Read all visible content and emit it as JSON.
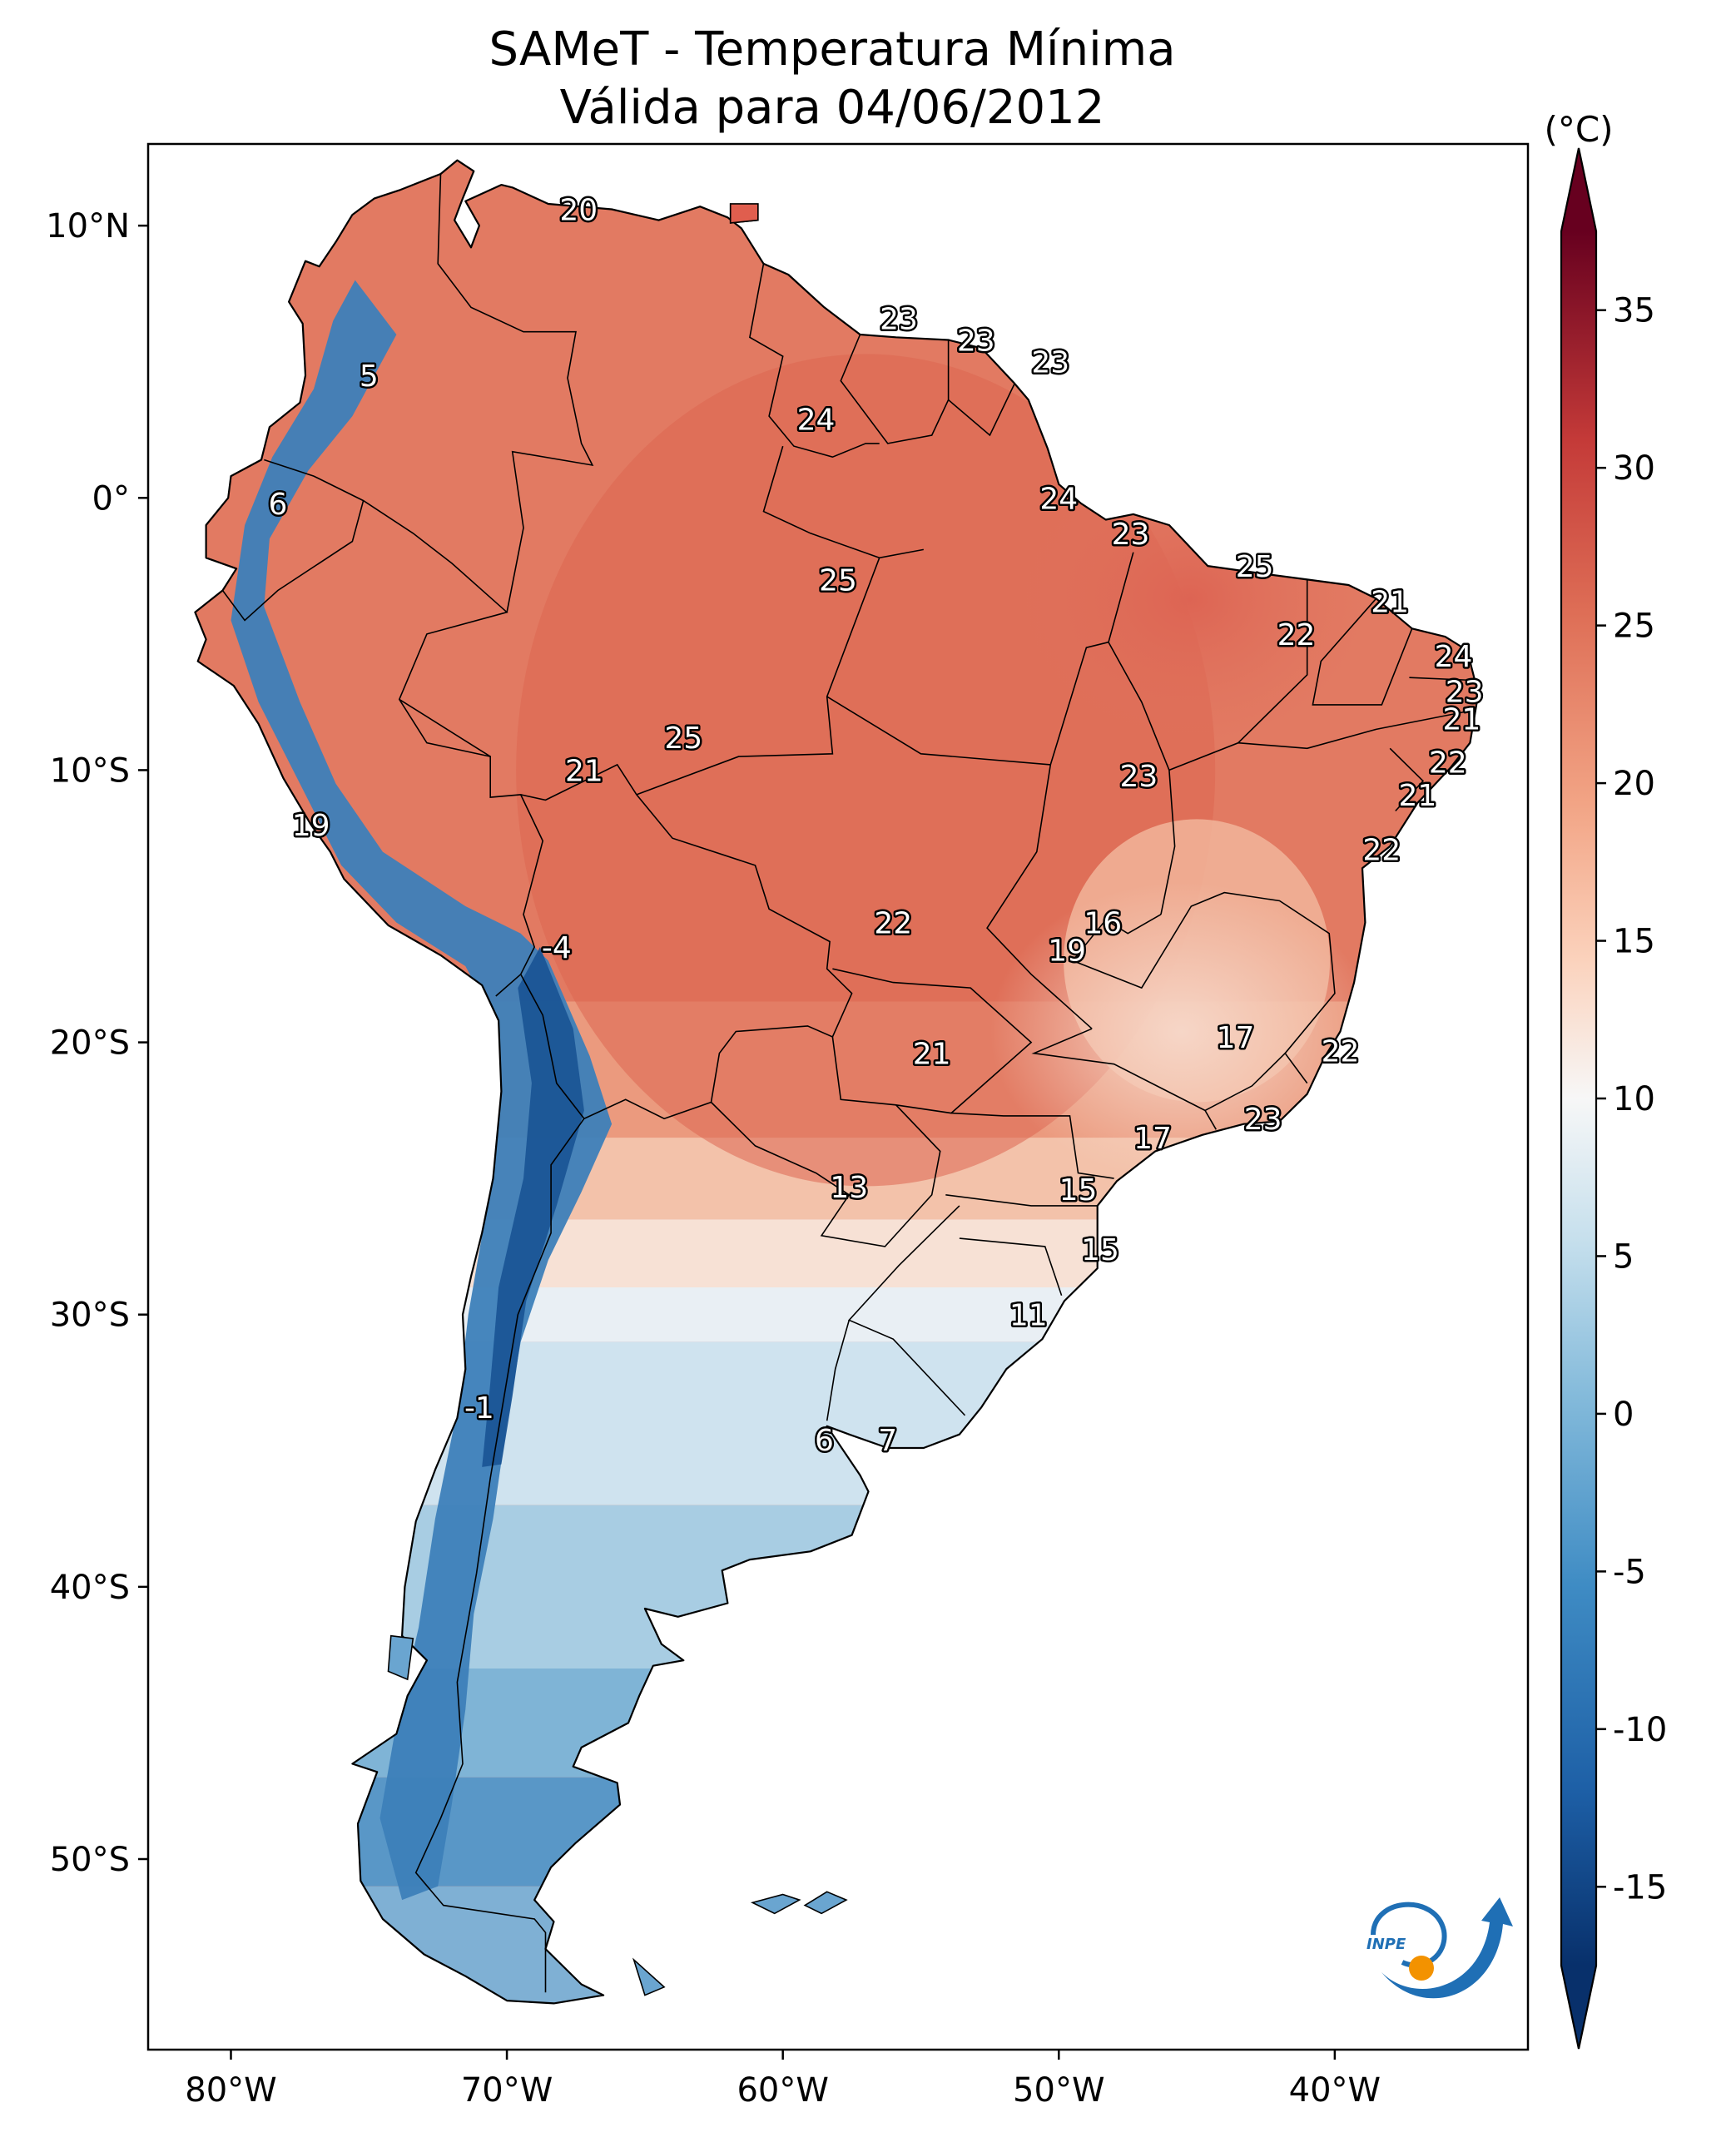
{
  "title_line1": "SAMeT - Temperatura Mínima",
  "title_line2": "Válida para 04/06/2012",
  "map": {
    "lon_range": [
      -83,
      -33
    ],
    "lat_range": [
      -57,
      13
    ],
    "lon_ticks": [
      {
        "value": -80,
        "label": "80°W"
      },
      {
        "value": -70,
        "label": "70°W"
      },
      {
        "value": -60,
        "label": "60°W"
      },
      {
        "value": -50,
        "label": "50°W"
      },
      {
        "value": -40,
        "label": "40°W"
      }
    ],
    "lat_ticks": [
      {
        "value": 10,
        "label": "10°N"
      },
      {
        "value": 0,
        "label": "0°"
      },
      {
        "value": -10,
        "label": "10°S"
      },
      {
        "value": -20,
        "label": "20°S"
      },
      {
        "value": -30,
        "label": "30°S"
      },
      {
        "value": -40,
        "label": "40°S"
      },
      {
        "value": -50,
        "label": "50°S"
      }
    ],
    "station_values": [
      {
        "lon": -67.4,
        "lat": 10.6,
        "label": "20"
      },
      {
        "lon": -55.8,
        "lat": 6.6,
        "label": "23"
      },
      {
        "lon": -53.0,
        "lat": 5.8,
        "label": "23"
      },
      {
        "lon": -50.3,
        "lat": 5.0,
        "label": "23"
      },
      {
        "lon": -58.8,
        "lat": 2.9,
        "label": "24"
      },
      {
        "lon": -75.0,
        "lat": 4.5,
        "label": "5"
      },
      {
        "lon": -50.0,
        "lat": 0.0,
        "label": "24"
      },
      {
        "lon": -47.4,
        "lat": -1.3,
        "label": "23"
      },
      {
        "lon": -78.3,
        "lat": -0.2,
        "label": "6"
      },
      {
        "lon": -42.9,
        "lat": -2.5,
        "label": "25"
      },
      {
        "lon": -58.0,
        "lat": -3.0,
        "label": "25"
      },
      {
        "lon": -38.0,
        "lat": -3.8,
        "label": "21"
      },
      {
        "lon": -41.4,
        "lat": -5.0,
        "label": "22"
      },
      {
        "lon": -35.7,
        "lat": -5.8,
        "label": "24"
      },
      {
        "lon": -35.3,
        "lat": -7.1,
        "label": "23"
      },
      {
        "lon": -35.4,
        "lat": -8.1,
        "label": "21"
      },
      {
        "lon": -63.6,
        "lat": -8.8,
        "label": "25"
      },
      {
        "lon": -35.9,
        "lat": -9.7,
        "label": "22"
      },
      {
        "lon": -67.2,
        "lat": -10.0,
        "label": "21"
      },
      {
        "lon": -47.1,
        "lat": -10.2,
        "label": "23"
      },
      {
        "lon": -37.0,
        "lat": -10.9,
        "label": "21"
      },
      {
        "lon": -77.1,
        "lat": -12.0,
        "label": "19"
      },
      {
        "lon": -38.3,
        "lat": -12.9,
        "label": "22"
      },
      {
        "lon": -48.4,
        "lat": -15.6,
        "label": "16"
      },
      {
        "lon": -56.0,
        "lat": -15.6,
        "label": "22"
      },
      {
        "lon": -49.7,
        "lat": -16.6,
        "label": "19"
      },
      {
        "lon": -68.2,
        "lat": -16.5,
        "label": "-4"
      },
      {
        "lon": -43.6,
        "lat": -19.8,
        "label": "17"
      },
      {
        "lon": -54.6,
        "lat": -20.4,
        "label": "21"
      },
      {
        "lon": -39.8,
        "lat": -20.3,
        "label": "22"
      },
      {
        "lon": -42.6,
        "lat": -22.8,
        "label": "23"
      },
      {
        "lon": -46.6,
        "lat": -23.5,
        "label": "17"
      },
      {
        "lon": -57.6,
        "lat": -25.3,
        "label": "13"
      },
      {
        "lon": -49.3,
        "lat": -25.4,
        "label": "15"
      },
      {
        "lon": -48.5,
        "lat": -27.6,
        "label": "15"
      },
      {
        "lon": -51.1,
        "lat": -30.0,
        "label": "11"
      },
      {
        "lon": -71.0,
        "lat": -33.4,
        "label": "-1"
      },
      {
        "lon": -58.5,
        "lat": -34.6,
        "label": "6"
      },
      {
        "lon": -56.2,
        "lat": -34.6,
        "label": "7"
      }
    ]
  },
  "colorbar": {
    "unit_label": "(°C)",
    "min": -17.5,
    "max": 37.5,
    "extend": "both",
    "colormap": "RdBu_r",
    "ticks": [
      {
        "value": 35,
        "label": "35"
      },
      {
        "value": 30,
        "label": "30"
      },
      {
        "value": 25,
        "label": "25"
      },
      {
        "value": 20,
        "label": "20"
      },
      {
        "value": 15,
        "label": "15"
      },
      {
        "value": 10,
        "label": "10"
      },
      {
        "value": 5,
        "label": "5"
      },
      {
        "value": 0,
        "label": "0"
      },
      {
        "value": -5,
        "label": "-5"
      },
      {
        "value": -10,
        "label": "-10"
      },
      {
        "value": -15,
        "label": "-15"
      }
    ]
  },
  "logo": {
    "text": "INPE",
    "colors": [
      "#1f6fb5",
      "#f39200"
    ]
  }
}
